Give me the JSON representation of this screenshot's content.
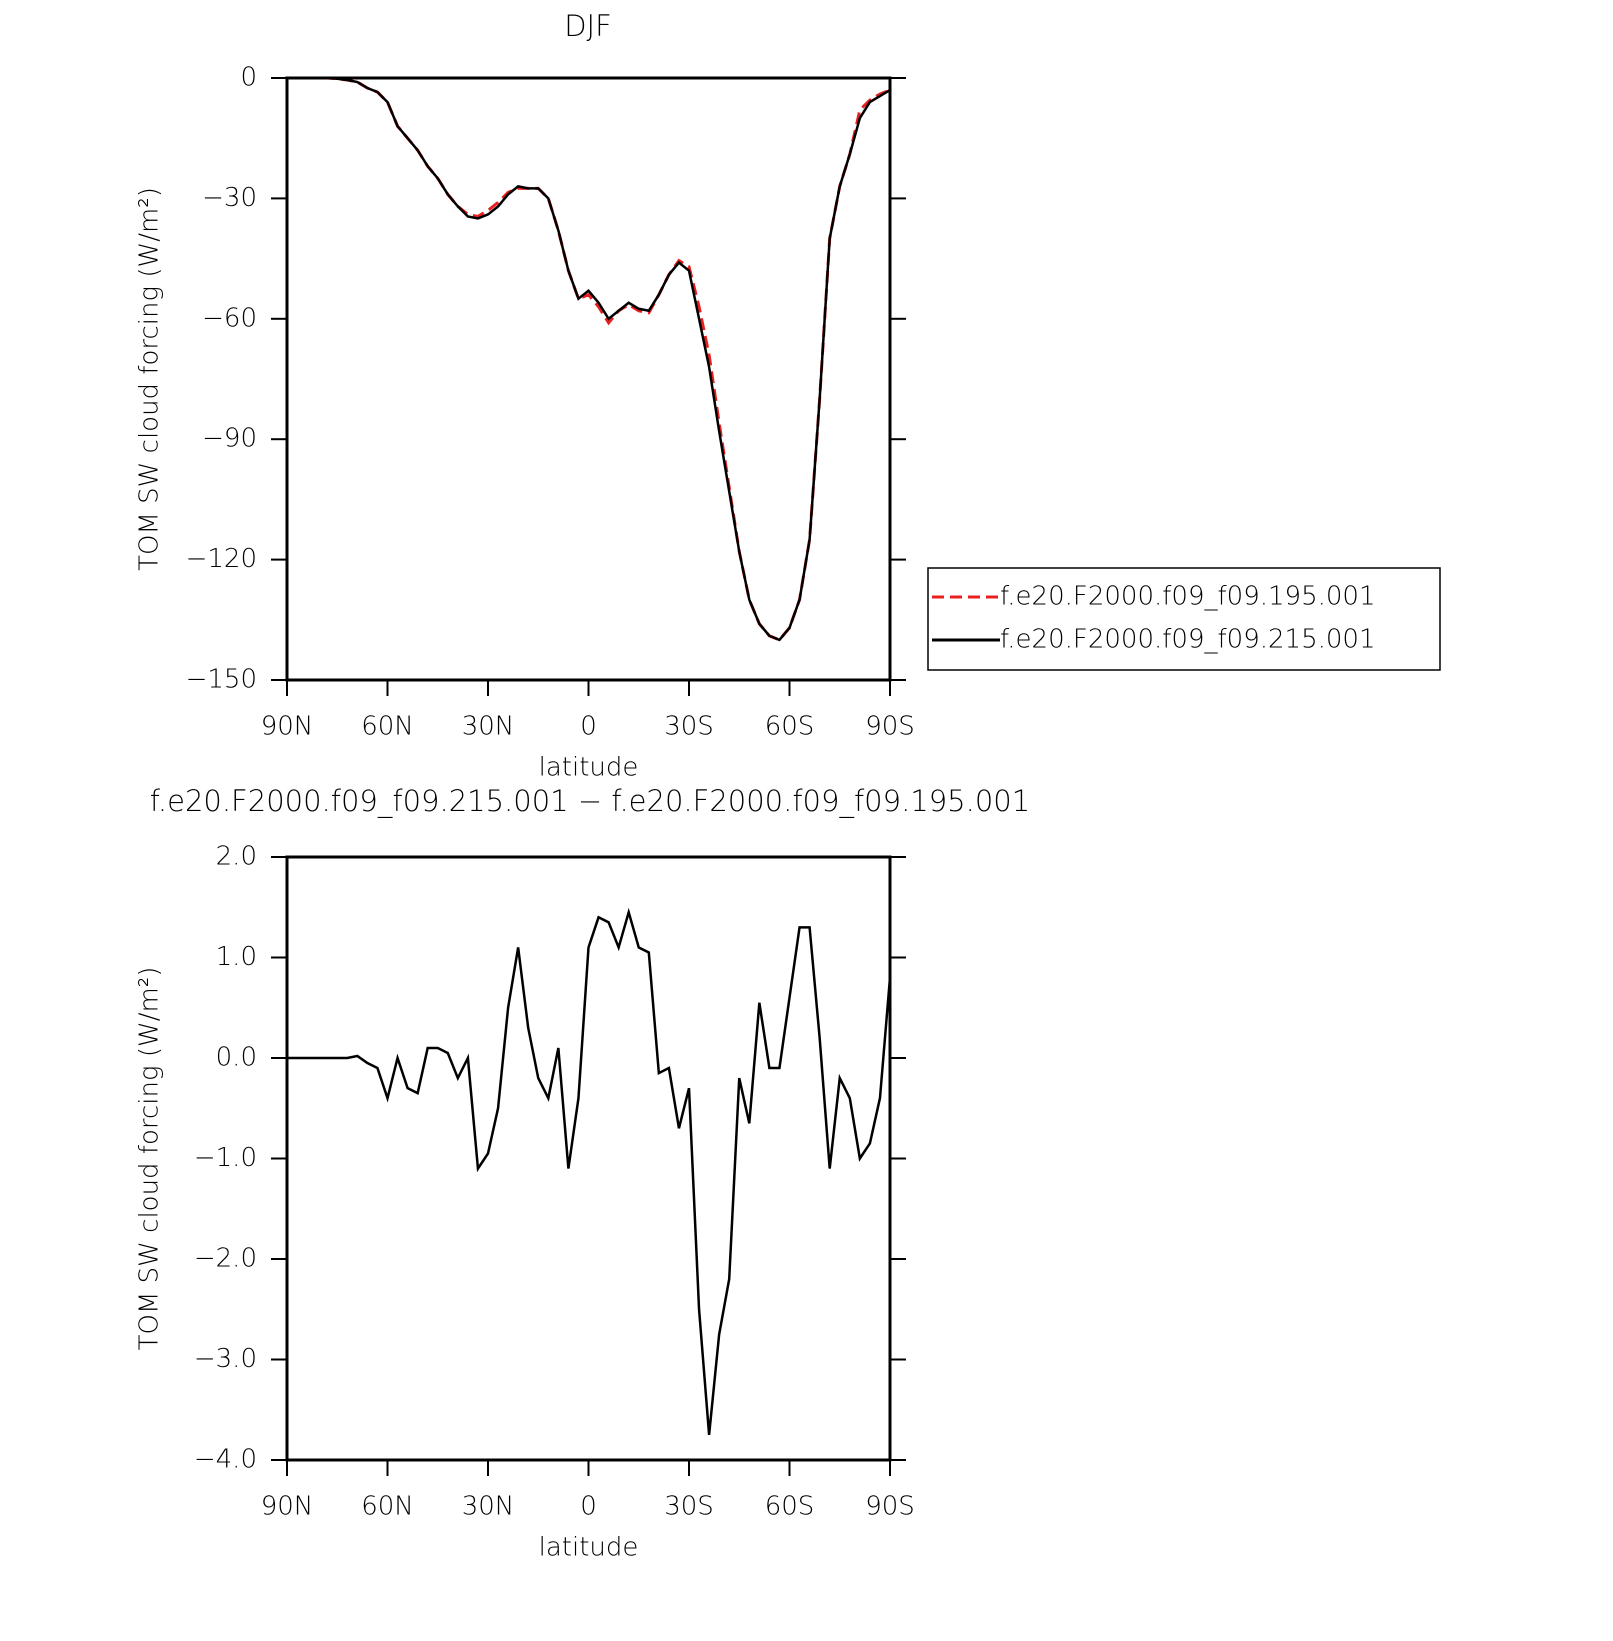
{
  "chart_data": [
    {
      "type": "line",
      "title": "DJF",
      "xlabel": "latitude",
      "ylabel": "TOM SW cloud forcing (W/m²)",
      "x": [
        90,
        87,
        84,
        81,
        78,
        75,
        72,
        69,
        66,
        63,
        60,
        57,
        54,
        51,
        48,
        45,
        42,
        39,
        36,
        33,
        30,
        27,
        24,
        21,
        18,
        15,
        12,
        9,
        6,
        3,
        0,
        -3,
        -6,
        -9,
        -12,
        -15,
        -18,
        -21,
        -24,
        -27,
        -30,
        -33,
        -36,
        -39,
        -42,
        -45,
        -48,
        -51,
        -54,
        -57,
        -60,
        -63,
        -66,
        -69,
        -72,
        -75,
        -78,
        -81,
        -84,
        -87,
        -90
      ],
      "series": [
        {
          "name": "f.e20.F2000.f09_f09.195.001",
          "color": "#e8201f",
          "dash": true,
          "values": [
            0,
            0,
            0,
            0,
            0,
            -0.2,
            -0.5,
            -1,
            -2.5,
            -3.5,
            -6,
            -12,
            -15,
            -18,
            -22,
            -25,
            -29,
            -32,
            -34,
            -34.5,
            -33,
            -31,
            -28.5,
            -27.5,
            -27.5,
            -27.5,
            -30,
            -38,
            -48,
            -55,
            -54,
            -57,
            -61,
            -58,
            -56.5,
            -58,
            -58.5,
            -54,
            -49,
            -45.5,
            -47,
            -57,
            -69,
            -86,
            -102,
            -118,
            -130,
            -136,
            -139,
            -140,
            -137,
            -130,
            -115,
            -80,
            -40,
            -27,
            -19,
            -8,
            -5.5,
            -4,
            -3
          ]
        },
        {
          "name": "f.e20.F2000.f09_f09.215.001",
          "color": "#000000",
          "dash": false,
          "values": [
            0,
            0,
            0,
            0,
            0,
            -0.2,
            -0.5,
            -1,
            -2.5,
            -3.5,
            -6,
            -12,
            -15,
            -18,
            -22,
            -25,
            -29,
            -32,
            -34.5,
            -35,
            -34,
            -32,
            -29,
            -27,
            -27.5,
            -27.5,
            -30,
            -38,
            -48,
            -55,
            -53,
            -56,
            -60,
            -58,
            -56,
            -57.5,
            -58,
            -54,
            -49,
            -46,
            -48,
            -60,
            -72,
            -88,
            -103,
            -118,
            -130,
            -136,
            -139,
            -140,
            -137,
            -130,
            -115,
            -80,
            -40,
            -27,
            -19,
            -10,
            -6,
            -4.5,
            -3
          ]
        }
      ],
      "xlim": [
        90,
        -90
      ],
      "xticks": [
        {
          "value": 90,
          "label": "90N"
        },
        {
          "value": 60,
          "label": "60N"
        },
        {
          "value": 30,
          "label": "30N"
        },
        0,
        {
          "value": -30,
          "label": "30S"
        },
        {
          "value": -60,
          "label": "60S"
        },
        {
          "value": -90,
          "label": "90S"
        }
      ],
      "ylim": [
        -150,
        0
      ],
      "yticks": [
        0,
        {
          "value": -30,
          "label": "−30"
        },
        {
          "value": -60,
          "label": "−60"
        },
        {
          "value": -90,
          "label": "−90"
        },
        {
          "value": -120,
          "label": "−120"
        },
        {
          "value": -150,
          "label": "−150"
        }
      ],
      "legend": "right"
    },
    {
      "type": "line",
      "title": "f.e20.F2000.f09_f09.215.001 − f.e20.F2000.f09_f09.195.001",
      "xlabel": "latitude",
      "ylabel": "TOM SW cloud forcing (W/m²)",
      "x": [
        90,
        87,
        84,
        81,
        78,
        75,
        72,
        69,
        66,
        63,
        60,
        57,
        54,
        51,
        48,
        45,
        42,
        39,
        36,
        33,
        30,
        27,
        24,
        21,
        18,
        15,
        12,
        9,
        6,
        3,
        0,
        -3,
        -6,
        -9,
        -12,
        -15,
        -18,
        -21,
        -24,
        -27,
        -30,
        -33,
        -36,
        -39,
        -42,
        -45,
        -48,
        -51,
        -54,
        -57,
        -60,
        -63,
        -66,
        -69,
        -72,
        -75,
        -78,
        -81,
        -84,
        -87,
        -90
      ],
      "series": [
        {
          "color": "#000000",
          "dash": false,
          "values": [
            0,
            0,
            0,
            0,
            0,
            0,
            0,
            0.02,
            -0.05,
            -0.1,
            -0.4,
            0,
            -0.3,
            -0.35,
            0.1,
            0.1,
            0.05,
            -0.2,
            0,
            -1.1,
            -0.95,
            -0.5,
            0.5,
            1.1,
            0.3,
            -0.2,
            -0.4,
            0.1,
            -1.1,
            -0.4,
            1.1,
            1.4,
            1.35,
            1.1,
            1.45,
            1.1,
            1.05,
            -0.15,
            -0.1,
            -0.7,
            -0.3,
            -2.5,
            -3.75,
            -2.75,
            -2.2,
            -0.2,
            -0.65,
            0.55,
            -0.1,
            -0.1,
            0.6,
            1.3,
            1.3,
            0.2,
            -1.1,
            -0.2,
            -0.4,
            -1,
            -0.85,
            -0.4,
            0.8
          ]
        }
      ],
      "xlim": [
        90,
        -90
      ],
      "xticks": [
        {
          "value": 90,
          "label": "90N"
        },
        {
          "value": 60,
          "label": "60N"
        },
        {
          "value": 30,
          "label": "30N"
        },
        0,
        {
          "value": -30,
          "label": "30S"
        },
        {
          "value": -60,
          "label": "60S"
        },
        {
          "value": -90,
          "label": "90S"
        }
      ],
      "ylim": [
        -4,
        2
      ],
      "yticks": [
        {
          "value": 2,
          "label": "2.0"
        },
        {
          "value": 1,
          "label": "1.0"
        },
        {
          "value": 0,
          "label": "0.0"
        },
        {
          "value": -1,
          "label": "−1.0"
        },
        {
          "value": -2,
          "label": "−2.0"
        },
        {
          "value": -3,
          "label": "−3.0"
        },
        {
          "value": -4,
          "label": "−4.0"
        }
      ]
    }
  ]
}
